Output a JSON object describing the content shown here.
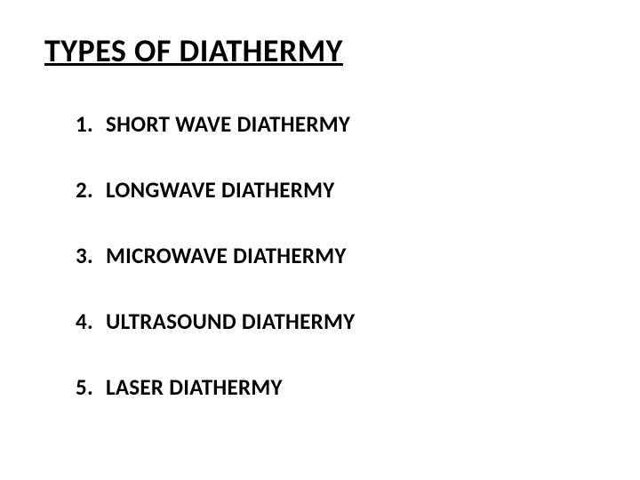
{
  "title": "TYPES OF DIATHERMY",
  "title_fontsize": 36,
  "title_fontweight": "bold",
  "title_decoration": "underline",
  "item_fontsize": 25,
  "item_fontweight": "bold",
  "text_color": "#000000",
  "background_color": "#ffffff",
  "font_family": "Calibri, Arial, sans-serif",
  "items": [
    {
      "number": "1.",
      "text": "SHORT WAVE DIATHERMY"
    },
    {
      "number": "2.",
      "text": "LONGWAVE DIATHERMY"
    },
    {
      "number": "3.",
      "text": "MICROWAVE  DIATHERMY"
    },
    {
      "number": "4.",
      "text": "ULTRASOUND DIATHERMY"
    },
    {
      "number": "5.",
      "text": "LASER DIATHERMY"
    }
  ]
}
